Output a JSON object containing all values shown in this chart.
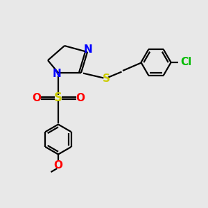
{
  "bg_color": "#e8e8e8",
  "bond_color": "#000000",
  "N_color": "#0000ff",
  "S_color": "#cccc00",
  "O_color": "#ff0000",
  "Cl_color": "#00bb00",
  "line_width": 1.6,
  "font_size": 10,
  "fig_size": [
    3.0,
    3.0
  ],
  "dpi": 100,
  "xlim": [
    0,
    10
  ],
  "ylim": [
    0,
    10
  ]
}
